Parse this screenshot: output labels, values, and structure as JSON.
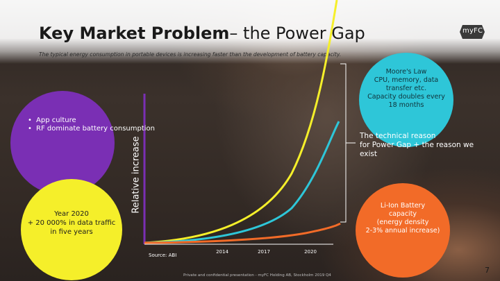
{
  "slide": {
    "title_bold": "Key Market Problem",
    "title_rest": "– the Power Gap",
    "subtitle": "The typical energy consumption in portable devices is increasing faster than the development of battery capacity.",
    "logo_text": "myFC",
    "page_number": "7",
    "footer": "Private and confidential presentation - myFC Holding AB, Stockholm 2019 Q4"
  },
  "callouts": {
    "purple": {
      "items": [
        "App culture",
        "RF dominate battery consumption"
      ],
      "color": "#7a2fb4"
    },
    "yellow": {
      "text": "Year 2020\n+ 20 000% in data traffic\nin five years",
      "color": "#f5ef2a"
    },
    "blue": {
      "text": "Moore's Law\nCPU, memory, data\ntransfer etc.\nCapacity doubles every\n18 months",
      "color": "#2ec6d8"
    },
    "technical_reason": "The technical reason\nfor Power Gap + the reason we\nexist",
    "orange": {
      "text": "Li-Ion Battery\ncapacity\n(energy density\n2-3% annual increase)",
      "color": "#f26b28"
    }
  },
  "chart_data": {
    "type": "line",
    "ylabel": "Relative increase",
    "xlabel": "",
    "x_ticks": [
      "2014",
      "2017",
      "2020"
    ],
    "source": "Source: ABI",
    "series": [
      {
        "color": "#f5ef2a"
      },
      {
        "color": "#2ec6d8"
      },
      {
        "color": "#f26b28"
      }
    ],
    "axis_color": "#7a2fb4"
  }
}
